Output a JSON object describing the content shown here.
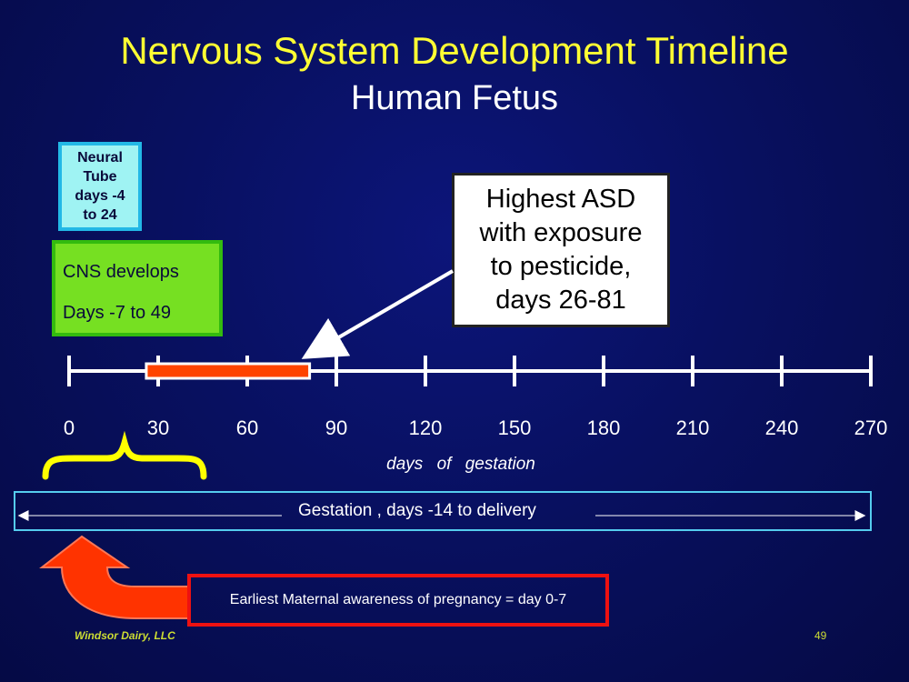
{
  "slide": {
    "title": "Nervous System Development Timeline",
    "subtitle": "Human Fetus"
  },
  "boxes": {
    "neural_tube": [
      "Neural",
      "Tube",
      "days -4",
      "to 24"
    ],
    "cns": [
      "CNS develops",
      "Days -7 to 49"
    ],
    "asd": [
      "Highest ASD",
      "with exposure",
      "to pesticide,",
      "days 26-81"
    ]
  },
  "timeline": {
    "ticks": [
      "0",
      "30",
      "60",
      "90",
      "120",
      "150",
      "180",
      "210",
      "240",
      "270"
    ],
    "axis_label": "days of gestation",
    "highlight_range": [
      26,
      81
    ]
  },
  "gestation_label": "Gestation , days -14 to delivery",
  "maternal_awareness": "Earliest Maternal awareness of pregnancy = day 0-7",
  "footer": {
    "company": "Windsor Dairy, LLC",
    "page_number": "49"
  },
  "colors": {
    "background": "#081060",
    "title": "#ffff33",
    "neural_fill": "#9ff3f3",
    "neural_border": "#22b8e6",
    "cns_fill": "#76e022",
    "cns_border": "#33bb0f",
    "highlight_bar": "#ff4400",
    "brace": "#ffff00",
    "gestation_border": "#55ccee",
    "maternal_border": "#ee1111",
    "arrow_fill": "#ff3300"
  }
}
